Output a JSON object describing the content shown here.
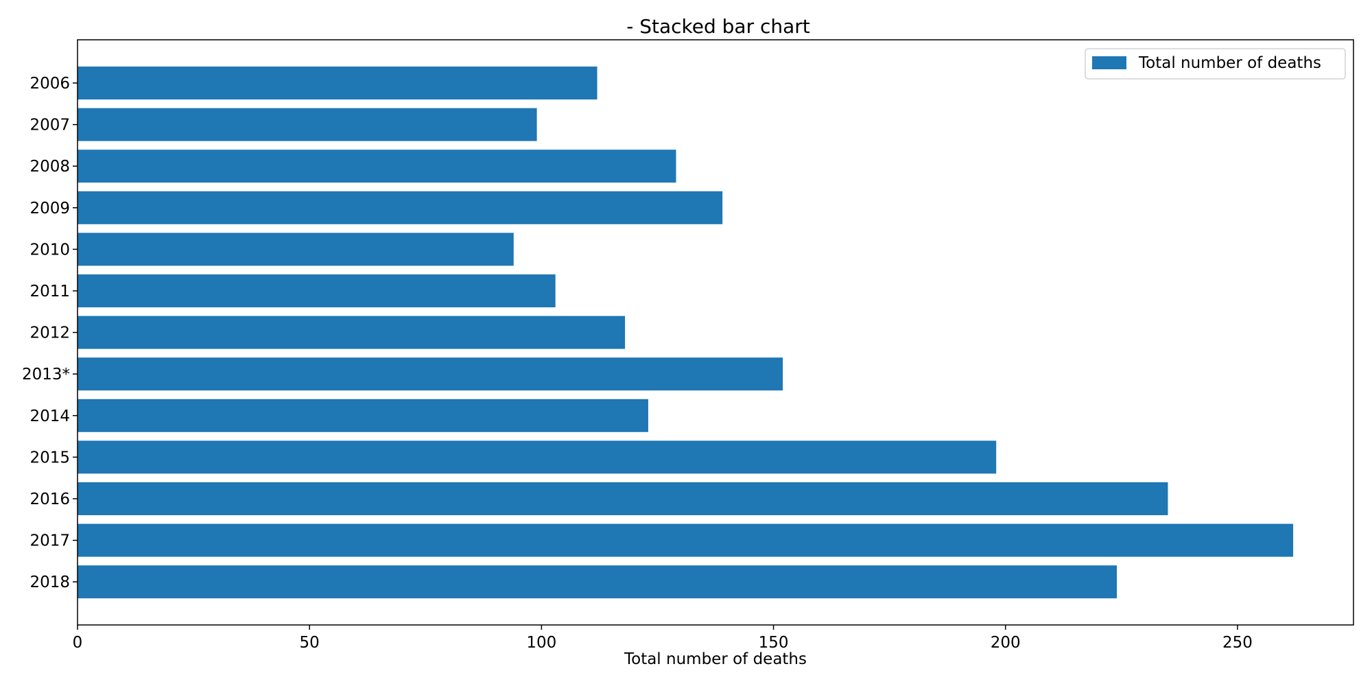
{
  "chart_data": {
    "type": "bar",
    "orientation": "horizontal",
    "title": "- Stacked bar chart",
    "xlabel": "Total number of deaths",
    "ylabel": "",
    "xlim": [
      0,
      275
    ],
    "xticks": [
      0,
      50,
      100,
      150,
      200,
      250
    ],
    "categories": [
      "2006",
      "2007",
      "2008",
      "2009",
      "2010",
      "2011",
      "2012",
      "2013*",
      "2014",
      "2015",
      "2016",
      "2017",
      "2018"
    ],
    "series": [
      {
        "name": "Total number of deaths",
        "color": "#1f77b4",
        "values": [
          112,
          99,
          129,
          139,
          94,
          103,
          118,
          152,
          123,
          198,
          235,
          262,
          224
        ]
      }
    ],
    "grid": false,
    "legend_position": "top-right"
  }
}
